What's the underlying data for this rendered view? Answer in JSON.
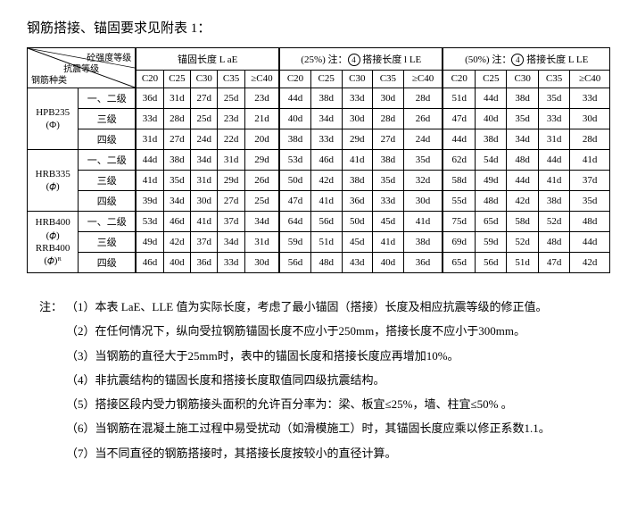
{
  "title": "钢筋搭接、锚固要求见附表 1：",
  "diag": {
    "top": "砼强度等级",
    "mid": "抗震等级",
    "bot": "钢筋种类"
  },
  "group_headers": {
    "g1": "锚固长度 L aE",
    "g2_a": "(25%)",
    "g2_b": "注：",
    "g2_c": "4",
    "g2_d": "搭接长度 l LE",
    "g3_a": "(50%)",
    "g3_b": "注：",
    "g3_c": "4",
    "g3_d": "搭接长度 L LE"
  },
  "cols": [
    "C20",
    "C25",
    "C30",
    "C35",
    "≥C40"
  ],
  "row_groups": [
    {
      "name": "HPB235",
      "note": "(Φ)",
      "rows": [
        {
          "lvl": "一、二级",
          "v": [
            "36d",
            "31d",
            "27d",
            "25d",
            "23d",
            "44d",
            "38d",
            "33d",
            "30d",
            "28d",
            "51d",
            "44d",
            "38d",
            "35d",
            "33d"
          ]
        },
        {
          "lvl": "三级",
          "v": [
            "33d",
            "28d",
            "25d",
            "23d",
            "21d",
            "40d",
            "34d",
            "30d",
            "28d",
            "26d",
            "47d",
            "40d",
            "35d",
            "33d",
            "30d"
          ]
        },
        {
          "lvl": "四级",
          "v": [
            "31d",
            "27d",
            "24d",
            "22d",
            "20d",
            "38d",
            "33d",
            "29d",
            "27d",
            "24d",
            "44d",
            "38d",
            "34d",
            "31d",
            "28d"
          ]
        }
      ]
    },
    {
      "name": "HRB335",
      "note": "(𝜙)",
      "rows": [
        {
          "lvl": "一、二级",
          "v": [
            "44d",
            "38d",
            "34d",
            "31d",
            "29d",
            "53d",
            "46d",
            "41d",
            "38d",
            "35d",
            "62d",
            "54d",
            "48d",
            "44d",
            "41d"
          ]
        },
        {
          "lvl": "三级",
          "v": [
            "41d",
            "35d",
            "31d",
            "29d",
            "26d",
            "50d",
            "42d",
            "38d",
            "35d",
            "32d",
            "58d",
            "49d",
            "44d",
            "41d",
            "37d"
          ]
        },
        {
          "lvl": "四级",
          "v": [
            "39d",
            "34d",
            "30d",
            "27d",
            "25d",
            "47d",
            "41d",
            "36d",
            "33d",
            "30d",
            "55d",
            "48d",
            "42d",
            "38d",
            "35d"
          ]
        }
      ]
    },
    {
      "name": "HRB400",
      "note": "(𝜙)",
      "name2": "RRB400",
      "note2": "(𝜙)ᴿ",
      "rows": [
        {
          "lvl": "一、二级",
          "v": [
            "53d",
            "46d",
            "41d",
            "37d",
            "34d",
            "64d",
            "56d",
            "50d",
            "45d",
            "41d",
            "75d",
            "65d",
            "58d",
            "52d",
            "48d"
          ]
        },
        {
          "lvl": "三级",
          "v": [
            "49d",
            "42d",
            "37d",
            "34d",
            "31d",
            "59d",
            "51d",
            "45d",
            "41d",
            "38d",
            "69d",
            "59d",
            "52d",
            "48d",
            "44d"
          ]
        },
        {
          "lvl": "四级",
          "v": [
            "46d",
            "40d",
            "36d",
            "33d",
            "30d",
            "56d",
            "48d",
            "43d",
            "40d",
            "36d",
            "65d",
            "56d",
            "51d",
            "47d",
            "42d"
          ]
        }
      ]
    }
  ],
  "notes_label": "注：",
  "notes": [
    "（1）本表 LaE、LLE 值为实际长度，考虑了最小锚固（搭接）长度及相应抗震等级的修正值。",
    "（2）在任何情况下，纵向受拉钢筋锚固长度不应小于250mm，搭接长度不应小于300mm。",
    "（3）当钢筋的直径大于25mm时，表中的锚固长度和搭接长度应再增加10%。",
    "（4）非抗震结构的锚固长度和搭接长度取值同四级抗震结构。",
    "（5）搭接区段内受力钢筋接头面积的允许百分率为：梁、板宜≤25%，墙、柱宜≤50% 。",
    "（6）当钢筋在混凝土施工过程中易受扰动（如滑模施工）时，其锚固长度应乘以修正系数1.1。",
    "（7）当不同直径的钢筋搭接时，其搭接长度按较小的直径计算。"
  ]
}
